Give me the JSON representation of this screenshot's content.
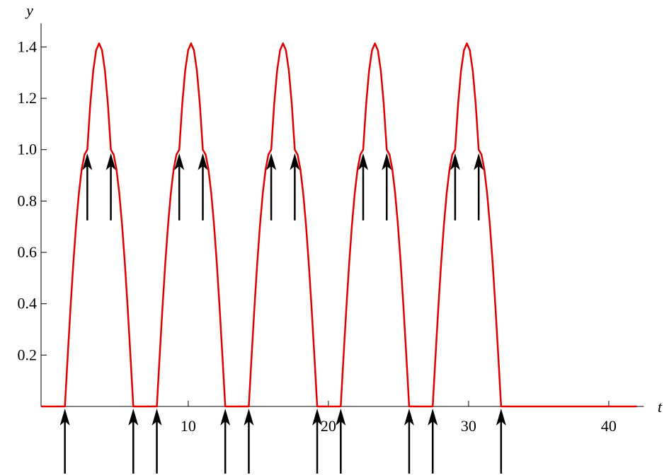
{
  "chart_data": {
    "type": "line",
    "x_label": "t",
    "y_label": "y",
    "xlim": [
      -0.5,
      42
    ],
    "ylim": [
      0,
      1.47
    ],
    "xticks": [
      10,
      20,
      30,
      40
    ],
    "yticks": [
      0.2,
      0.4,
      0.6,
      0.8,
      {
        "value": 1,
        "label": "1.0"
      },
      1.2,
      1.4
    ],
    "series": [
      {
        "color": "#e00000",
        "x": [
          -0.5,
          1.2,
          1.4,
          1.6,
          1.8,
          2,
          2.2,
          2.4,
          2.6,
          2.8,
          3.01,
          3.22,
          3.43,
          3.64,
          3.85,
          4.06,
          4.27,
          4.48,
          4.68,
          4.88,
          5.08,
          5.28,
          5.48,
          5.68,
          5.88,
          6.08,
          7.76,
          7.96,
          8.16,
          8.36,
          8.56,
          8.76,
          8.96,
          9.16,
          9.36,
          9.57,
          9.78,
          9.99,
          10.2,
          10.41,
          10.62,
          10.83,
          11.04,
          11.24,
          11.44,
          11.64,
          11.84,
          12.04,
          12.24,
          12.44,
          12.64,
          14.32,
          14.52,
          14.72,
          14.92,
          15.12,
          15.32,
          15.52,
          15.72,
          15.92,
          16.13,
          16.34,
          16.55,
          16.76,
          16.97,
          17.18,
          17.39,
          17.6,
          17.8,
          18,
          18.2,
          18.4,
          18.6,
          18.8,
          19,
          19.2,
          20.88,
          21.08,
          21.28,
          21.48,
          21.68,
          21.88,
          22.08,
          22.28,
          22.48,
          22.69,
          22.9,
          23.11,
          23.32,
          23.53,
          23.74,
          23.95,
          24.16,
          24.36,
          24.56,
          24.76,
          24.96,
          25.16,
          25.36,
          25.56,
          25.76,
          27.44,
          27.64,
          27.84,
          28.04,
          28.24,
          28.44,
          28.64,
          28.84,
          29.04,
          29.25,
          29.46,
          29.67,
          29.88,
          30.09,
          30.3,
          30.51,
          30.72,
          30.92,
          31.12,
          31.32,
          31.52,
          31.72,
          31.92,
          32.12,
          32.32,
          42
        ],
        "values": [
          0,
          0,
          0.195,
          0.383,
          0.556,
          0.707,
          0.831,
          0.924,
          0.981,
          1,
          1.176,
          1.307,
          1.387,
          1.414,
          1.387,
          1.307,
          1.176,
          1,
          0.981,
          0.924,
          0.831,
          0.707,
          0.556,
          0.383,
          0.195,
          0,
          0,
          0.195,
          0.383,
          0.556,
          0.707,
          0.831,
          0.924,
          0.981,
          1,
          1.176,
          1.307,
          1.387,
          1.414,
          1.387,
          1.307,
          1.176,
          1,
          0.981,
          0.924,
          0.831,
          0.707,
          0.556,
          0.383,
          0.195,
          0,
          0,
          0.195,
          0.383,
          0.556,
          0.707,
          0.831,
          0.924,
          0.981,
          1,
          1.176,
          1.307,
          1.387,
          1.414,
          1.387,
          1.307,
          1.176,
          1,
          0.981,
          0.924,
          0.831,
          0.707,
          0.556,
          0.383,
          0.195,
          0,
          0,
          0.195,
          0.383,
          0.556,
          0.707,
          0.831,
          0.924,
          0.981,
          1,
          1.176,
          1.307,
          1.387,
          1.414,
          1.387,
          1.307,
          1.176,
          1,
          0.981,
          0.924,
          0.831,
          0.707,
          0.556,
          0.383,
          0.195,
          0,
          0,
          0.195,
          0.383,
          0.556,
          0.707,
          0.831,
          0.924,
          0.981,
          1,
          1.176,
          1.307,
          1.387,
          1.414,
          1.387,
          1.307,
          1.176,
          1,
          0.981,
          0.924,
          0.831,
          0.707,
          0.556,
          0.383,
          0.195,
          0,
          0
        ]
      }
    ],
    "arrows_bottom": [
      1.2,
      6.08,
      7.76,
      12.64,
      14.32,
      19.2,
      20.88,
      25.76,
      27.44,
      32.32
    ],
    "arrows_top": [
      2.8,
      4.48,
      9.36,
      11.04,
      15.92,
      17.6,
      22.48,
      24.16,
      29.04,
      30.72
    ]
  }
}
